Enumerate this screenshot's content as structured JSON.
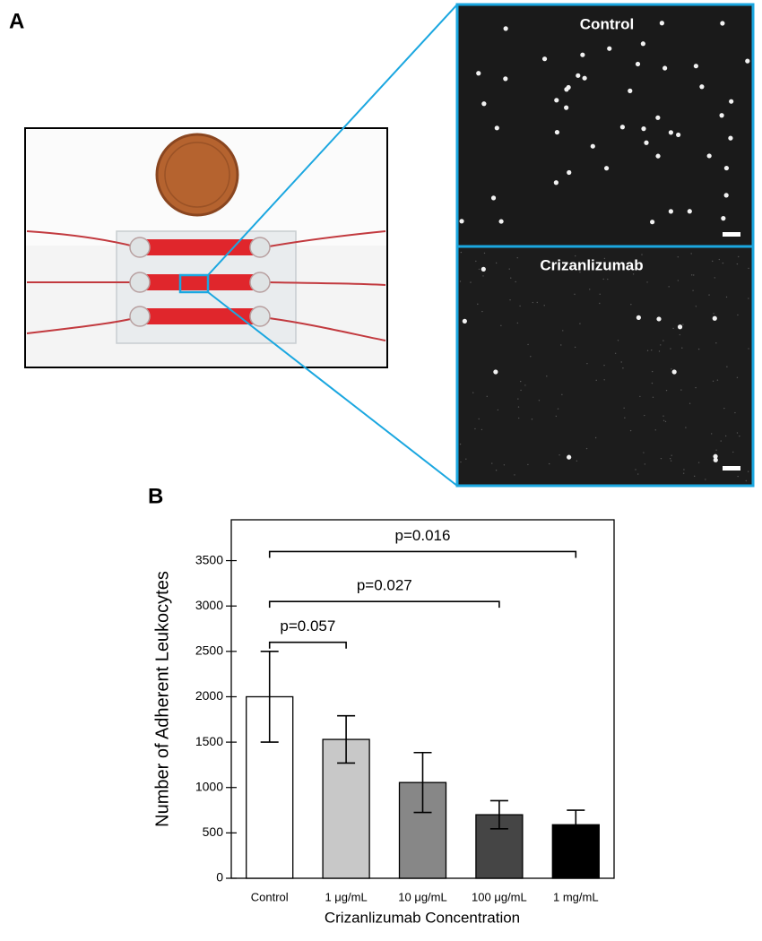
{
  "panel_a": {
    "label": "A",
    "micrographs": [
      {
        "label": "Control"
      },
      {
        "label": "Crizanlizumab"
      }
    ]
  },
  "chart_data": {
    "type": "bar",
    "panel_label": "B",
    "x_label": "Crizanlizumab Concentration",
    "y_label": "Number of Adherent Leukocytes",
    "categories": [
      "Control",
      "1 μg/mL",
      "10 μg/mL",
      "100 μg/mL",
      "1 mg/mL"
    ],
    "values": [
      2000,
      1530,
      1055,
      700,
      590
    ],
    "errors": [
      500,
      260,
      330,
      155,
      160
    ],
    "colors": [
      "#ffffff",
      "#c8c8c8",
      "#878787",
      "#454545",
      "#000000"
    ],
    "ylim": [
      0,
      3950
    ],
    "yticks": [
      0,
      500,
      1000,
      1500,
      2000,
      2500,
      3000,
      3500
    ],
    "annotations": [
      {
        "text": "p=0.057",
        "from": 0,
        "to": 1,
        "y": 2600
      },
      {
        "text": "p=0.027",
        "from": 0,
        "to": 3,
        "y": 3050
      },
      {
        "text": "p=0.016",
        "from": 0,
        "to": 4,
        "y": 3600
      }
    ]
  }
}
